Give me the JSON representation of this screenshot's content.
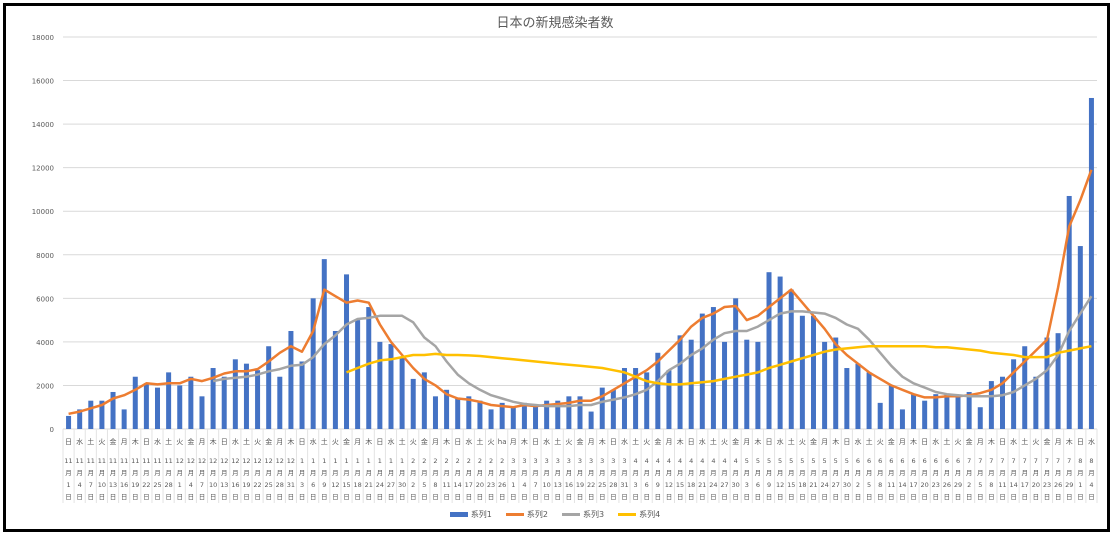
{
  "chart_data": {
    "type": "bar+line",
    "title": "日本の新規感染者数",
    "ylim": [
      0,
      18000
    ],
    "yticks": [
      0,
      2000,
      4000,
      6000,
      8000,
      10000,
      12000,
      14000,
      16000,
      18000
    ],
    "grid": true,
    "legend_position": "bottom",
    "colors": {
      "系列1": "#4472C4",
      "系列2": "#ED7D31",
      "系列3": "#A5A5A5",
      "系列4": "#FFC000"
    },
    "weekdays": [
      "日",
      "水",
      "土",
      "火",
      "金",
      "月",
      "木",
      "日",
      "水",
      "土",
      "火",
      "金",
      "月",
      "木",
      "日",
      "水",
      "土",
      "火",
      "金",
      "月",
      "木",
      "日",
      "水",
      "土",
      "火",
      "金",
      "月",
      "木",
      "日",
      "水",
      "土",
      "火",
      "金",
      "月",
      "木",
      "日",
      "水",
      "土",
      "火",
      "ha",
      "月",
      "木",
      "日",
      "水",
      "土",
      "火",
      "金",
      "月",
      "木",
      "日",
      "水",
      "土",
      "火",
      "金",
      "月",
      "木",
      "日",
      "水",
      "土",
      "火",
      "金",
      "月",
      "木",
      "日",
      "水",
      "土",
      "火",
      "金",
      "月",
      "木",
      "日",
      "水",
      "土",
      "火",
      "金",
      "月",
      "木",
      "日",
      "水",
      "土",
      "火",
      "金",
      "月",
      "木",
      "日",
      "水",
      "土",
      "火",
      "金",
      "月",
      "木",
      "日",
      "水"
    ],
    "categories": [
      "11月1日",
      "11月4日",
      "11月7日",
      "11月10日",
      "11月13日",
      "11月16日",
      "11月19日",
      "11月22日",
      "11月25日",
      "11月28日",
      "12月1日",
      "12月4日",
      "12月7日",
      "12月10日",
      "12月13日",
      "12月16日",
      "12月19日",
      "12月22日",
      "12月25日",
      "12月28日",
      "12月31日",
      "1月3日",
      "1月6日",
      "1月9日",
      "1月12日",
      "1月15日",
      "1月18日",
      "1月21日",
      "1月24日",
      "1月27日",
      "1月30日",
      "2月2日",
      "2月5日",
      "2月8日",
      "2月11日",
      "2月14日",
      "2月17日",
      "2月20日",
      "2月23日",
      "2月26日",
      "3月1日",
      "3月4日",
      "3月7日",
      "3月10日",
      "3月13日",
      "3月16日",
      "3月19日",
      "3月22日",
      "3月25日",
      "3月28日",
      "3月31日",
      "4月3日",
      "4月6日",
      "4月9日",
      "4月12日",
      "4月15日",
      "4月18日",
      "4月21日",
      "4月24日",
      "4月27日",
      "4月30日",
      "5月3日",
      "5月6日",
      "5月9日",
      "5月12日",
      "5月15日",
      "5月18日",
      "5月21日",
      "5月24日",
      "5月27日",
      "5月30日",
      "6月2日",
      "6月5日",
      "6月8日",
      "6月11日",
      "6月14日",
      "6月17日",
      "6月20日",
      "6月23日",
      "6月26日",
      "6月29日",
      "7月2日",
      "7月5日",
      "7月8日",
      "7月11日",
      "7月14日",
      "7月17日",
      "7月20日",
      "7月23日",
      "7月26日",
      "7月29日",
      "8月1日",
      "8月4日"
    ],
    "series": [
      {
        "name": "系列1",
        "type": "bar",
        "values": [
          600,
          900,
          1300,
          1300,
          1700,
          900,
          2400,
          2100,
          1900,
          2600,
          2000,
          2400,
          1500,
          2800,
          2400,
          3200,
          3000,
          2700,
          3800,
          2400,
          4500,
          3100,
          6000,
          7800,
          4500,
          7100,
          5000,
          5600,
          4000,
          3900,
          3300,
          2300,
          2600,
          1500,
          1800,
          1400,
          1500,
          1300,
          900,
          1200,
          1000,
          1200,
          1100,
          1300,
          1300,
          1500,
          1500,
          800,
          1900,
          1800,
          2800,
          2800,
          2600,
          3500,
          2700,
          4300,
          4100,
          5300,
          5600,
          4000,
          6000,
          4100,
          4000,
          7200,
          7000,
          6400,
          5200,
          5200,
          4000,
          4200,
          2800,
          3000,
          2600,
          1200,
          2000,
          900,
          1600,
          1300,
          1600,
          1600,
          1500,
          1700,
          1000,
          2200,
          2400,
          3200,
          3800,
          2400,
          4200,
          4400,
          10700,
          8400,
          15200
        ]
      },
      {
        "name": "系列2",
        "type": "line",
        "values": [
          700,
          800,
          950,
          1100,
          1400,
          1550,
          1800,
          2100,
          2050,
          2100,
          2100,
          2300,
          2200,
          2350,
          2550,
          2650,
          2650,
          2750,
          3100,
          3500,
          3800,
          3550,
          4500,
          6400,
          6100,
          5800,
          5900,
          5800,
          4800,
          4000,
          3400,
          2800,
          2300,
          2000,
          1600,
          1400,
          1350,
          1250,
          1100,
          1050,
          1000,
          1100,
          1050,
          1100,
          1150,
          1200,
          1300,
          1300,
          1500,
          1800,
          2100,
          2400,
          2700,
          3100,
          3600,
          4100,
          4700,
          5100,
          5300,
          5600,
          5650,
          5000,
          5200,
          5600,
          6000,
          6400,
          5800,
          5200,
          4600,
          3900,
          3400,
          3000,
          2600,
          2300,
          2000,
          1800,
          1600,
          1450,
          1450,
          1500,
          1500,
          1550,
          1650,
          1800,
          2100,
          2600,
          3100,
          3600,
          4100,
          6500,
          9300,
          10500,
          11900
        ]
      },
      {
        "name": "系列3",
        "type": "line",
        "values": [
          null,
          null,
          null,
          null,
          null,
          null,
          null,
          null,
          null,
          null,
          null,
          null,
          null,
          2200,
          2300,
          2350,
          2400,
          2500,
          2650,
          2750,
          2900,
          2950,
          3300,
          3900,
          4300,
          4800,
          5050,
          5100,
          5200,
          5200,
          5200,
          4900,
          4200,
          3800,
          3100,
          2500,
          2100,
          1800,
          1550,
          1400,
          1250,
          1150,
          1100,
          1050,
          1050,
          1050,
          1100,
          1100,
          1250,
          1350,
          1450,
          1600,
          1800,
          2200,
          2700,
          3000,
          3400,
          3700,
          4100,
          4400,
          4500,
          4500,
          4700,
          5000,
          5300,
          5400,
          5400,
          5350,
          5300,
          5100,
          4800,
          4600,
          4100,
          3500,
          2900,
          2400,
          2100,
          1900,
          1700,
          1600,
          1550,
          1500,
          1500,
          1500,
          1550,
          1700,
          2000,
          2300,
          2700,
          3400,
          4500,
          5300,
          6100
        ]
      },
      {
        "name": "系列4",
        "type": "line",
        "values": [
          null,
          null,
          null,
          null,
          null,
          null,
          null,
          null,
          null,
          null,
          null,
          null,
          null,
          null,
          null,
          null,
          null,
          null,
          null,
          null,
          null,
          null,
          null,
          null,
          null,
          2600,
          2800,
          3000,
          3150,
          3200,
          3300,
          3400,
          3400,
          3450,
          3400,
          3400,
          3380,
          3350,
          3300,
          3250,
          3200,
          3150,
          3100,
          3050,
          3000,
          2950,
          2900,
          2850,
          2800,
          2700,
          2600,
          2400,
          2200,
          2100,
          2050,
          2050,
          2100,
          2150,
          2200,
          2300,
          2400,
          2500,
          2600,
          2800,
          2950,
          3100,
          3250,
          3400,
          3550,
          3650,
          3700,
          3750,
          3800,
          3800,
          3800,
          3800,
          3800,
          3800,
          3750,
          3750,
          3700,
          3650,
          3600,
          3500,
          3450,
          3400,
          3300,
          3300,
          3300,
          3500,
          3600,
          3700,
          3800
        ]
      }
    ]
  }
}
